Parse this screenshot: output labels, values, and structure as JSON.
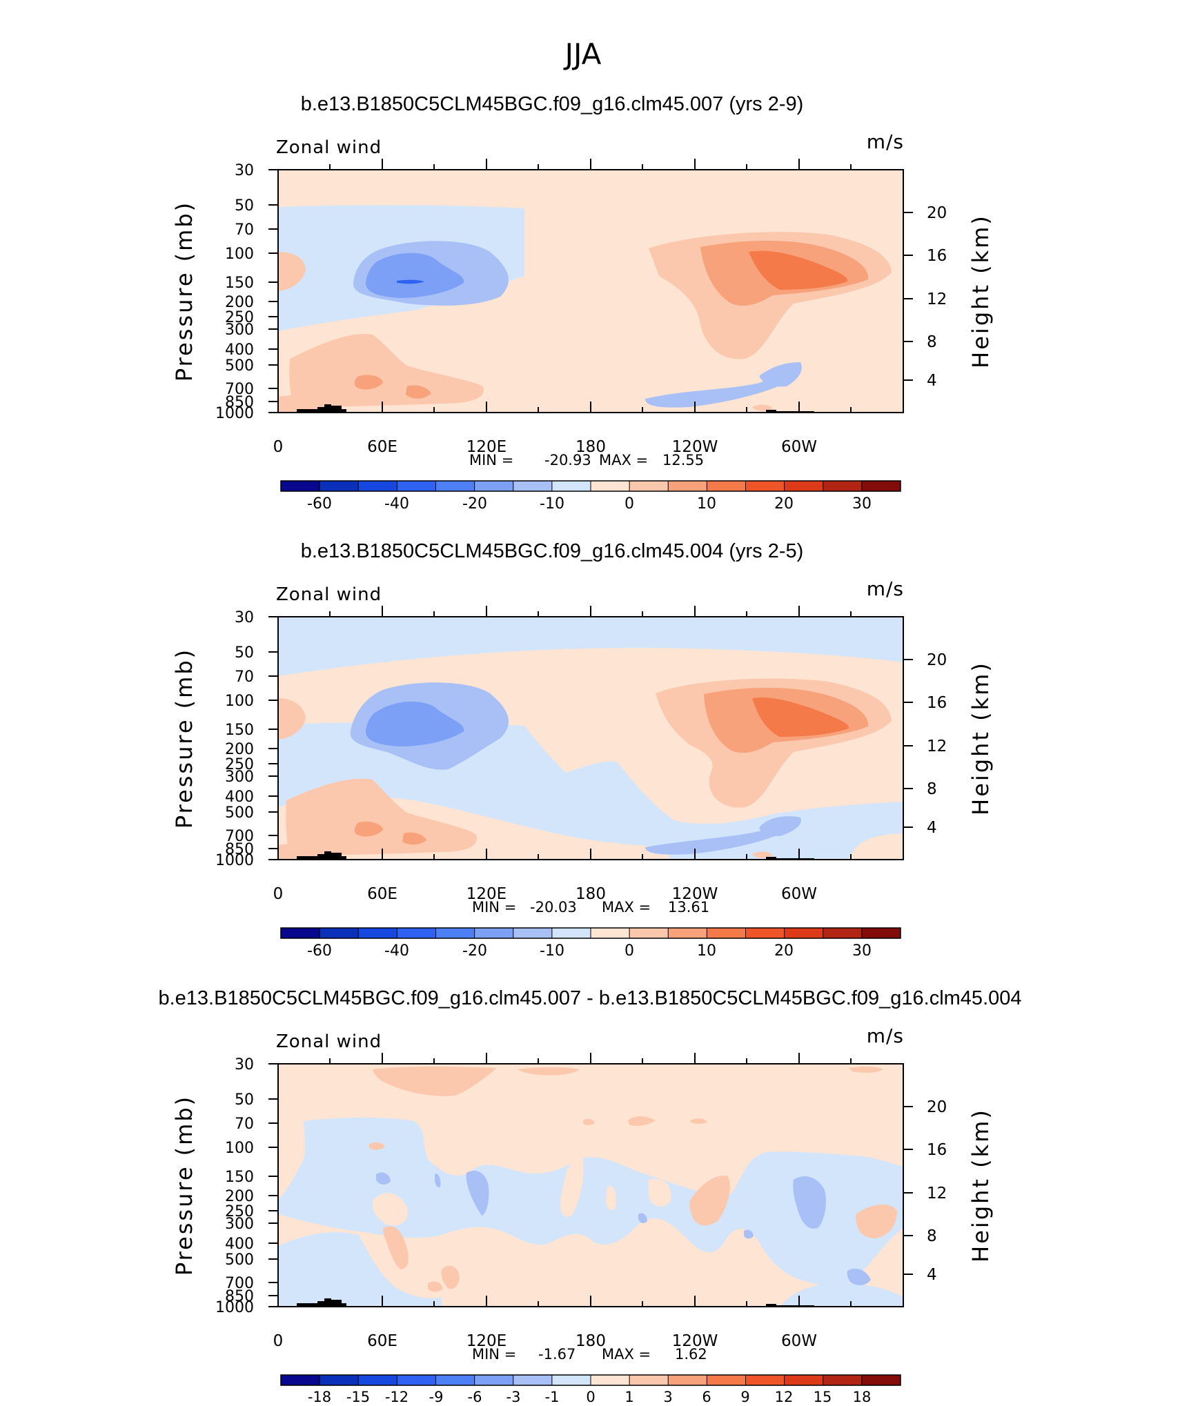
{
  "figure": {
    "title": "JJA"
  },
  "colors": {
    "pal_full": [
      "#08088f",
      "#0a2fb8",
      "#1647df",
      "#2f62f3",
      "#4d7ff5",
      "#7ba0f5",
      "#a9c0f7",
      "#d3e5fb",
      "#fde4d3",
      "#fbc8ad",
      "#f8a27c",
      "#f47a4a",
      "#f0552a",
      "#dd3a1a",
      "#b22414",
      "#820c0a"
    ],
    "pal_diff": [
      "#08088f",
      "#0a2fb8",
      "#1647df",
      "#2f62f3",
      "#4d7ff5",
      "#7ba0f5",
      "#a9c0f7",
      "#d3e5fb",
      "#fde4d3",
      "#fbc8ad",
      "#f8a27c",
      "#f47a4a",
      "#f0552a",
      "#dd3a1a",
      "#b22414",
      "#820c0a"
    ]
  },
  "chart_data": [
    {
      "type": "heatmap",
      "title": "b.e13.B1850C5CLM45BGC.f09_g16.clm45.007 (yrs 2-9)",
      "left_label": "Zonal wind",
      "right_label": "m/s",
      "ylabel": "Pressure (mb)",
      "ylabel_right": "Height (km)",
      "xticks": [
        "0",
        "60E",
        "120E",
        "180",
        "120W",
        "60W"
      ],
      "yticks": [
        "30",
        "50",
        "70",
        "100",
        "150",
        "200",
        "250",
        "300",
        "400",
        "500",
        "700",
        "850",
        "1000"
      ],
      "yticks_right": [
        "20",
        "16",
        "12",
        "8",
        "4"
      ],
      "stats": {
        "min_label": "MIN =",
        "min": "-20.93",
        "max_label": "MAX =",
        "max": "12.55"
      },
      "colorbar_labels": [
        "-60",
        "-40",
        "-20",
        "-10",
        "0",
        "10",
        "20",
        "30"
      ],
      "features": [
        {
          "lon": 80,
          "p": 150,
          "value": -20.93
        },
        {
          "lon": 255,
          "p": 140,
          "value": 12.55
        }
      ]
    },
    {
      "type": "heatmap",
      "title": "b.e13.B1850C5CLM45BGC.f09_g16.clm45.004 (yrs 2-5)",
      "left_label": "Zonal wind",
      "right_label": "m/s",
      "ylabel": "Pressure (mb)",
      "ylabel_right": "Height (km)",
      "xticks": [
        "0",
        "60E",
        "120E",
        "180",
        "120W",
        "60W"
      ],
      "yticks": [
        "30",
        "50",
        "70",
        "100",
        "150",
        "200",
        "250",
        "300",
        "400",
        "500",
        "700",
        "850",
        "1000"
      ],
      "yticks_right": [
        "20",
        "16",
        "12",
        "8",
        "4"
      ],
      "stats": {
        "min_label": "MIN =",
        "min": "-20.03",
        "max_label": "MAX =",
        "max": "13.61"
      },
      "colorbar_labels": [
        "-60",
        "-40",
        "-20",
        "-10",
        "0",
        "10",
        "20",
        "30"
      ],
      "features": [
        {
          "lon": 80,
          "p": 150,
          "value": -20.03
        },
        {
          "lon": 255,
          "p": 140,
          "value": 13.61
        }
      ]
    },
    {
      "type": "heatmap",
      "title": "b.e13.B1850C5CLM45BGC.f09_g16.clm45.007 - b.e13.B1850C5CLM45BGC.f09_g16.clm45.004",
      "left_label": "Zonal wind",
      "right_label": "m/s",
      "ylabel": "Pressure (mb)",
      "ylabel_right": "Height (km)",
      "xticks": [
        "0",
        "60E",
        "120E",
        "180",
        "120W",
        "60W"
      ],
      "yticks": [
        "30",
        "50",
        "70",
        "100",
        "150",
        "200",
        "250",
        "300",
        "400",
        "500",
        "700",
        "850",
        "1000"
      ],
      "yticks_right": [
        "20",
        "16",
        "12",
        "8",
        "4"
      ],
      "stats": {
        "min_label": "MIN =",
        "min": "-1.67",
        "max_label": "MAX =",
        "max": "1.62"
      },
      "colorbar_labels": [
        "-18",
        "-15",
        "-12",
        "-9",
        "-6",
        "-3",
        "-1",
        "0",
        "1",
        "3",
        "6",
        "9",
        "12",
        "15",
        "18"
      ],
      "features": []
    }
  ]
}
